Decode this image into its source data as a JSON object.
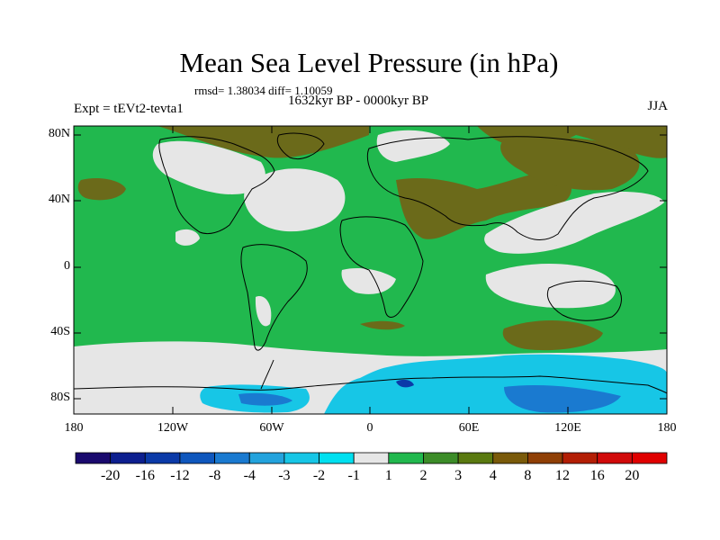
{
  "title": "Mean Sea Level Pressure (in hPa)",
  "stats": "rmsd= 1.38034 diff= 1.10059",
  "experiment": "Expt = tEVt2-tevta1",
  "period": "1632kyr BP - 0000kyr BP",
  "season": "JJA",
  "lat_labels": [
    "80N",
    "40N",
    "0",
    "40S",
    "80S"
  ],
  "lon_labels": [
    "180",
    "120W",
    "60W",
    "0",
    "60E",
    "120E",
    "180"
  ],
  "colorbar": {
    "labels": [
      "-20",
      "-16",
      "-12",
      "-8",
      "-4",
      "-3",
      "-2",
      "-1",
      "1",
      "2",
      "3",
      "4",
      "8",
      "12",
      "16",
      "20"
    ],
    "colors": [
      "#1a0a6e",
      "#0d1f8f",
      "#0b3aa8",
      "#0f57bd",
      "#1a7ad0",
      "#23a3dd",
      "#17c6e6",
      "#00e0f0",
      "#e6e6e6",
      "#21b84e",
      "#3c8c28",
      "#5a7a10",
      "#7a5a0a",
      "#8f3f05",
      "#b31e05",
      "#d10a0a",
      "#e00000"
    ]
  },
  "map_colors": {
    "base_green": "#21b84e",
    "neutral_gray": "#e6e6e6",
    "dark_olive": "#6b6a1a",
    "brown": "#7a5a0a",
    "light_blue": "#17c6e6",
    "mid_blue": "#1a7ad0",
    "dark_blue": "#0b3aa8"
  }
}
